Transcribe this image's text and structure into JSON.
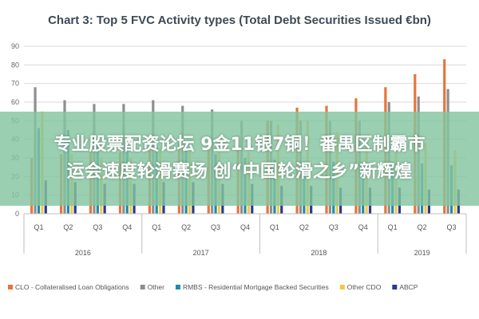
{
  "chart_data": {
    "type": "bar",
    "title": "Chart 3: Top 5 FVC Activity types (Total Debt Securities Issued €bn)",
    "xlabel": "",
    "ylabel": "",
    "ylim": [
      0,
      90
    ],
    "yticks": [
      0,
      10,
      20,
      30,
      40,
      50,
      60,
      70,
      80,
      90
    ],
    "grid": true,
    "legend_position": "bottom",
    "categories": [
      "Q1",
      "Q2",
      "Q3",
      "Q4",
      "Q1",
      "Q2",
      "Q3",
      "Q4",
      "Q1",
      "Q2",
      "Q3",
      "Q4",
      "Q1",
      "Q2",
      "Q3"
    ],
    "year_groups": [
      {
        "label": "2016",
        "count": 4
      },
      {
        "label": "2017",
        "count": 4
      },
      {
        "label": "2018",
        "count": 4
      },
      {
        "label": "2019",
        "count": 3
      }
    ],
    "series": [
      {
        "name": "CLO - Collateralised Loan Obligations",
        "color": "#e8743b",
        "values": [
          30,
          32,
          34,
          33,
          36,
          38,
          40,
          42,
          50,
          57,
          58,
          62,
          68,
          75,
          83
        ]
      },
      {
        "name": "Other",
        "color": "#8e8e8e",
        "values": [
          68,
          61,
          59,
          59,
          61,
          58,
          56,
          50,
          50,
          50,
          50,
          50,
          60,
          63,
          67
        ]
      },
      {
        "name": "RMBS - Residential Mortgage Backed Securities",
        "color": "#1f8ca8",
        "values": [
          46,
          45,
          40,
          38,
          36,
          34,
          32,
          30,
          29,
          28,
          28,
          28,
          28,
          27,
          26
        ]
      },
      {
        "name": "Other CDO",
        "color": "#f2c94c",
        "values": [
          55,
          32,
          30,
          30,
          35,
          34,
          33,
          33,
          48,
          50,
          44,
          38,
          40,
          38,
          34
        ]
      },
      {
        "name": "ABCP",
        "color": "#2b3a8c",
        "values": [
          18,
          17,
          16,
          16,
          17,
          17,
          16,
          16,
          15,
          15,
          14,
          14,
          14,
          13,
          13
        ]
      }
    ]
  },
  "overlay": {
    "line1": "专业股票配资论坛 9金11银7铜！番禺区制霸市",
    "line2": "运会速度轮滑赛场 创“中国轮滑之乡”新辉煌",
    "color": "#84c4a0"
  }
}
